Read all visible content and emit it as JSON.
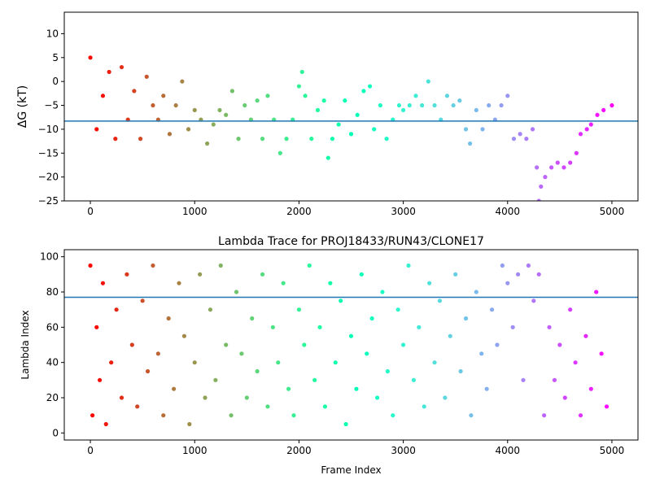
{
  "chart_data": [
    {
      "type": "scatter",
      "panel": "top",
      "title": "",
      "xlabel": "",
      "ylabel": "ΔG (kT)",
      "xlim": [
        -250,
        5250
      ],
      "ylim": [
        -25,
        14.5
      ],
      "xticks": [
        0,
        1000,
        2000,
        3000,
        4000,
        5000
      ],
      "yticks": [
        10,
        5,
        0,
        -5,
        -10,
        -15,
        -20,
        -25
      ],
      "hline": -8.3,
      "hline_color": "#1f77b4",
      "colormap": "rainbow (reversed, red at frame 0 to violet at frame 5000)",
      "x_range": [
        0,
        5000
      ],
      "series": [
        {
          "x": [
            0,
            60,
            120,
            180,
            240,
            300,
            360,
            420,
            480,
            540,
            600,
            650,
            700,
            760,
            820,
            880,
            940,
            1000,
            1060,
            1120,
            1180,
            1240,
            1300,
            1360,
            1420,
            1480,
            1540,
            1600,
            1650,
            1700,
            1760,
            1820,
            1880,
            1940,
            2000,
            2030,
            2060,
            2120,
            2180,
            2240,
            2280,
            2320,
            2380,
            2440,
            2500,
            2560,
            2620,
            2680,
            2720,
            2780,
            2840,
            2900,
            2960,
            3000,
            3060,
            3120,
            3180,
            3240,
            3300,
            3360,
            3420,
            3480,
            3540,
            3600,
            3640,
            3700,
            3760,
            3820,
            3880,
            3940,
            4000,
            4060,
            4120,
            4180,
            4240,
            4280,
            4300,
            4320,
            4360,
            4420,
            4480,
            4540,
            4600,
            4660,
            4700,
            4760,
            4800,
            4860,
            4920,
            5000
          ],
          "y": [
            5,
            -10,
            -3,
            2,
            -12,
            3,
            -8,
            -2,
            -12,
            1,
            -5,
            -8,
            -3,
            -11,
            -5,
            0,
            -10,
            -6,
            -8,
            -13,
            -9,
            -6,
            -7,
            -2,
            -12,
            -5,
            -8,
            -4,
            -12,
            -3,
            -8,
            -15,
            -12,
            -8,
            -1,
            2,
            -3,
            -12,
            -6,
            -4,
            -16,
            -12,
            -9,
            -4,
            -11,
            -7,
            -2,
            -1,
            -10,
            -5,
            -12,
            -8,
            -5,
            -6,
            -5,
            -3,
            -5,
            0,
            -5,
            -8,
            -3,
            -5,
            -4,
            -10,
            -13,
            -6,
            -10,
            -5,
            -8,
            -5,
            -3,
            -12,
            -11,
            -12,
            -10,
            -18,
            -25,
            -22,
            -20,
            -18,
            -17,
            -18,
            -17,
            -15,
            -11,
            -10,
            -9,
            -7,
            -6,
            -5
          ]
        }
      ]
    },
    {
      "type": "scatter",
      "panel": "bottom",
      "title": "Lambda Trace for PROJ18433/RUN43/CLONE17",
      "xlabel": "Frame Index",
      "ylabel": "Lambda Index",
      "xlim": [
        -250,
        5250
      ],
      "ylim": [
        -4,
        104
      ],
      "xticks": [
        0,
        1000,
        2000,
        3000,
        4000,
        5000
      ],
      "yticks": [
        0,
        20,
        40,
        60,
        80,
        100
      ],
      "hline": 77,
      "hline_color": "#1f77b4",
      "colormap": "rainbow (reversed, red at frame 0 to violet at frame 5000)",
      "x_range": [
        0,
        5000
      ],
      "series": [
        {
          "x": [
            0,
            20,
            60,
            90,
            120,
            150,
            200,
            250,
            300,
            350,
            400,
            450,
            500,
            550,
            600,
            650,
            700,
            750,
            800,
            850,
            900,
            950,
            1000,
            1050,
            1100,
            1150,
            1200,
            1250,
            1300,
            1350,
            1400,
            1450,
            1500,
            1550,
            1600,
            1650,
            1700,
            1750,
            1800,
            1850,
            1900,
            1950,
            2000,
            2050,
            2100,
            2150,
            2200,
            2250,
            2300,
            2350,
            2400,
            2450,
            2500,
            2550,
            2600,
            2650,
            2700,
            2750,
            2800,
            2850,
            2900,
            2950,
            3000,
            3050,
            3100,
            3150,
            3200,
            3250,
            3300,
            3350,
            3400,
            3450,
            3500,
            3550,
            3600,
            3650,
            3700,
            3750,
            3800,
            3850,
            3900,
            3950,
            4000,
            4050,
            4100,
            4150,
            4200,
            4250,
            4300,
            4350,
            4400,
            4450,
            4500,
            4550,
            4600,
            4650,
            4700,
            4750,
            4800,
            4850,
            4900,
            4950
          ],
          "y": [
            95,
            10,
            60,
            30,
            85,
            5,
            40,
            70,
            20,
            90,
            50,
            15,
            75,
            35,
            95,
            45,
            10,
            65,
            25,
            85,
            55,
            5,
            40,
            90,
            20,
            70,
            30,
            95,
            50,
            10,
            80,
            45,
            20,
            65,
            35,
            90,
            15,
            60,
            40,
            85,
            25,
            10,
            70,
            50,
            95,
            30,
            60,
            15,
            85,
            40,
            75,
            5,
            55,
            25,
            90,
            45,
            65,
            20,
            80,
            35,
            10,
            70,
            50,
            95,
            30,
            60,
            15,
            85,
            40,
            75,
            20,
            55,
            90,
            35,
            65,
            10,
            80,
            45,
            25,
            70,
            50,
            95,
            85,
            60,
            90,
            30,
            95,
            75,
            90,
            10,
            60,
            30,
            50,
            20,
            70,
            40,
            10,
            55,
            25,
            80,
            45,
            15
          ]
        }
      ]
    }
  ]
}
